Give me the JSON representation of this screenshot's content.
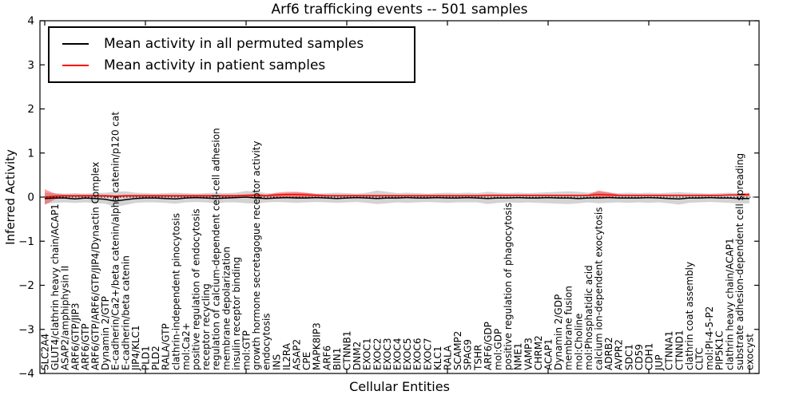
{
  "figure": {
    "title": "Arf6 trafficking events -- 501 samples",
    "xlabel": "Cellular Entities",
    "ylabel": "Inferred Activity"
  },
  "chart_data": {
    "type": "line",
    "title": "Arf6 trafficking events -- 501 samples",
    "xlabel": "Cellular Entities",
    "ylabel": "Inferred Activity",
    "ylim": [
      -4,
      4
    ],
    "yticks": [
      -4,
      -3,
      -2,
      -1,
      0,
      1,
      2,
      3,
      4
    ],
    "grid": false,
    "legend_position": "upper left",
    "zero_line": "dotted black at y=0",
    "categories": [
      "SLC2A4",
      "GLUT4/clathrin heavy chain/ACAP1",
      "ASAP2/amphiphysin II",
      "ARF6/GTP/JIP3",
      "ARF6/GTP",
      "ARF6/GTP/ARF6/GTP/JIP4/Dynactin Complex",
      "Dynamin 2/GTP",
      "E-cadherin/Ca2+/beta catenin/alpha catenin/p120 cat",
      "E-cadherin/beta catenin",
      "JIP4/KLC1",
      "PLD1",
      "PLD2",
      "RALA/GTP",
      "clathrin-independent pinocytosis",
      "mol:Ca2+",
      "positive regulation of endocytosis",
      "receptor recycling",
      "regulation of calcium-dependent cell-cell adhesion",
      "membrane depolarization",
      "insulin receptor binding",
      "mol:GTP",
      "growth hormone secretagogue receptor activity",
      "endocytosis",
      "INS",
      "IL2RA",
      "ASAP2",
      "CPE",
      "MAPK8IP3",
      "ARF6",
      "BIN1",
      "CTNNB1",
      "DNM2",
      "EXOC1",
      "EXOC2",
      "EXOC3",
      "EXOC4",
      "EXOC5",
      "EXOC6",
      "EXOC7",
      "KLC1",
      "RALA",
      "SCAMP2",
      "SPAG9",
      "TSHR",
      "ARF6/GDP",
      "mol:GDP",
      "positive regulation of phagocytosis",
      "NME1",
      "VAMP3",
      "CHRM2",
      "ACAP1",
      "Dynamin 2/GDP",
      "membrane fusion",
      "mol:Choline",
      "mol:Phosphatidic acid",
      "calcium ion-dependent exocytosis",
      "ADRB2",
      "AVPR2",
      "SDC1",
      "CD59",
      "CDH1",
      "JUP",
      "CTNNA1",
      "CTNND1",
      "clathrin coat assembly",
      "CLTC",
      "mol:PI-4-5-P2",
      "PIP5K1C",
      "clathrin heavy chain/ACAP1",
      "substrate adhesion-dependent cell spreading",
      "exocyst"
    ],
    "series": [
      {
        "name": "Mean activity in all permuted samples",
        "color": "#000000",
        "band_color": "#808080",
        "band_opacity": 0.35,
        "values": [
          -0.03,
          -0.02,
          -0.02,
          -0.04,
          -0.02,
          -0.03,
          -0.05,
          -0.09,
          -0.06,
          -0.03,
          -0.02,
          -0.02,
          -0.03,
          -0.04,
          -0.02,
          -0.01,
          -0.02,
          -0.03,
          -0.02,
          -0.01,
          0.0,
          -0.02,
          -0.03,
          -0.02,
          -0.01,
          -0.02,
          -0.02,
          -0.01,
          -0.02,
          -0.03,
          -0.02,
          -0.01,
          -0.02,
          -0.03,
          -0.02,
          -0.02,
          -0.01,
          -0.02,
          -0.02,
          -0.01,
          -0.02,
          -0.02,
          -0.01,
          -0.02,
          -0.03,
          -0.02,
          -0.02,
          -0.01,
          -0.02,
          -0.02,
          -0.01,
          -0.02,
          -0.02,
          -0.03,
          -0.02,
          -0.02,
          -0.01,
          -0.02,
          -0.02,
          -0.02,
          -0.01,
          -0.02,
          -0.03,
          -0.04,
          -0.02,
          -0.02,
          -0.01,
          -0.02,
          -0.02,
          -0.03,
          -0.03
        ],
        "band_upper": [
          0.1,
          0.09,
          0.08,
          0.09,
          0.08,
          0.09,
          0.1,
          0.12,
          0.13,
          0.1,
          0.09,
          0.08,
          0.09,
          0.1,
          0.09,
          0.08,
          0.09,
          0.1,
          0.09,
          0.1,
          0.14,
          0.12,
          0.09,
          0.08,
          0.09,
          0.1,
          0.09,
          0.08,
          0.09,
          0.1,
          0.09,
          0.08,
          0.1,
          0.15,
          0.12,
          0.09,
          0.1,
          0.09,
          0.08,
          0.09,
          0.1,
          0.09,
          0.1,
          0.09,
          0.12,
          0.1,
          0.09,
          0.1,
          0.09,
          0.1,
          0.11,
          0.12,
          0.13,
          0.12,
          0.1,
          0.12,
          0.1,
          0.09,
          0.1,
          0.09,
          0.1,
          0.09,
          0.1,
          0.11,
          0.1,
          0.09,
          0.08,
          0.09,
          0.1,
          0.09,
          0.08
        ],
        "band_lower": [
          -0.15,
          -0.13,
          -0.12,
          -0.13,
          -0.12,
          -0.13,
          -0.15,
          -0.22,
          -0.18,
          -0.13,
          -0.12,
          -0.12,
          -0.13,
          -0.15,
          -0.12,
          -0.11,
          -0.12,
          -0.14,
          -0.12,
          -0.12,
          -0.14,
          -0.15,
          -0.12,
          -0.11,
          -0.12,
          -0.13,
          -0.12,
          -0.11,
          -0.12,
          -0.13,
          -0.12,
          -0.11,
          -0.13,
          -0.16,
          -0.14,
          -0.12,
          -0.13,
          -0.12,
          -0.11,
          -0.12,
          -0.13,
          -0.12,
          -0.12,
          -0.12,
          -0.16,
          -0.13,
          -0.12,
          -0.13,
          -0.12,
          -0.13,
          -0.14,
          -0.15,
          -0.16,
          -0.14,
          -0.12,
          -0.14,
          -0.13,
          -0.12,
          -0.13,
          -0.12,
          -0.13,
          -0.12,
          -0.14,
          -0.17,
          -0.13,
          -0.12,
          -0.11,
          -0.12,
          -0.13,
          -0.15,
          -0.14
        ]
      },
      {
        "name": "Mean activity in patient samples",
        "color": "#ff0000",
        "band_color": "#ff0000",
        "band_opacity": 0.38,
        "values": [
          0.0,
          0.02,
          0.03,
          0.03,
          0.03,
          0.03,
          0.03,
          0.02,
          0.03,
          0.03,
          0.03,
          0.03,
          0.03,
          0.03,
          0.03,
          0.03,
          0.03,
          0.03,
          0.03,
          0.03,
          0.04,
          0.04,
          0.03,
          0.05,
          0.06,
          0.06,
          0.05,
          0.04,
          0.03,
          0.03,
          0.03,
          0.03,
          0.03,
          0.03,
          0.03,
          0.03,
          0.03,
          0.03,
          0.03,
          0.03,
          0.03,
          0.03,
          0.03,
          0.03,
          0.04,
          0.04,
          0.04,
          0.04,
          0.04,
          0.04,
          0.04,
          0.04,
          0.04,
          0.04,
          0.04,
          0.06,
          0.05,
          0.04,
          0.04,
          0.04,
          0.04,
          0.04,
          0.04,
          0.04,
          0.04,
          0.04,
          0.04,
          0.04,
          0.05,
          0.05,
          0.06
        ],
        "band_upper": [
          0.18,
          0.08,
          0.05,
          0.05,
          0.05,
          0.05,
          0.05,
          0.04,
          0.05,
          0.05,
          0.05,
          0.05,
          0.05,
          0.05,
          0.05,
          0.05,
          0.05,
          0.05,
          0.05,
          0.05,
          0.06,
          0.08,
          0.05,
          0.1,
          0.12,
          0.12,
          0.1,
          0.07,
          0.05,
          0.05,
          0.05,
          0.05,
          0.05,
          0.05,
          0.05,
          0.05,
          0.05,
          0.05,
          0.05,
          0.05,
          0.05,
          0.05,
          0.05,
          0.05,
          0.06,
          0.06,
          0.05,
          0.05,
          0.05,
          0.05,
          0.05,
          0.05,
          0.05,
          0.05,
          0.06,
          0.15,
          0.11,
          0.06,
          0.05,
          0.05,
          0.05,
          0.05,
          0.05,
          0.05,
          0.05,
          0.05,
          0.05,
          0.05,
          0.06,
          0.07,
          0.1
        ],
        "band_lower": [
          -0.18,
          -0.05,
          -0.01,
          0.0,
          0.0,
          0.0,
          0.0,
          0.0,
          0.0,
          0.0,
          0.0,
          0.0,
          0.0,
          0.0,
          0.0,
          0.0,
          0.0,
          0.0,
          0.0,
          0.0,
          0.01,
          0.0,
          0.01,
          0.0,
          -0.01,
          -0.01,
          0.0,
          0.01,
          0.01,
          0.01,
          0.01,
          0.01,
          0.01,
          0.01,
          0.01,
          0.01,
          0.01,
          0.01,
          0.01,
          0.01,
          0.01,
          0.01,
          0.01,
          0.01,
          0.02,
          0.02,
          0.02,
          0.02,
          0.02,
          0.02,
          0.02,
          0.02,
          0.02,
          0.02,
          0.02,
          0.0,
          0.0,
          0.02,
          0.02,
          0.02,
          0.02,
          0.02,
          0.02,
          0.02,
          0.02,
          0.02,
          0.02,
          0.02,
          0.03,
          0.03,
          0.02
        ]
      }
    ]
  }
}
